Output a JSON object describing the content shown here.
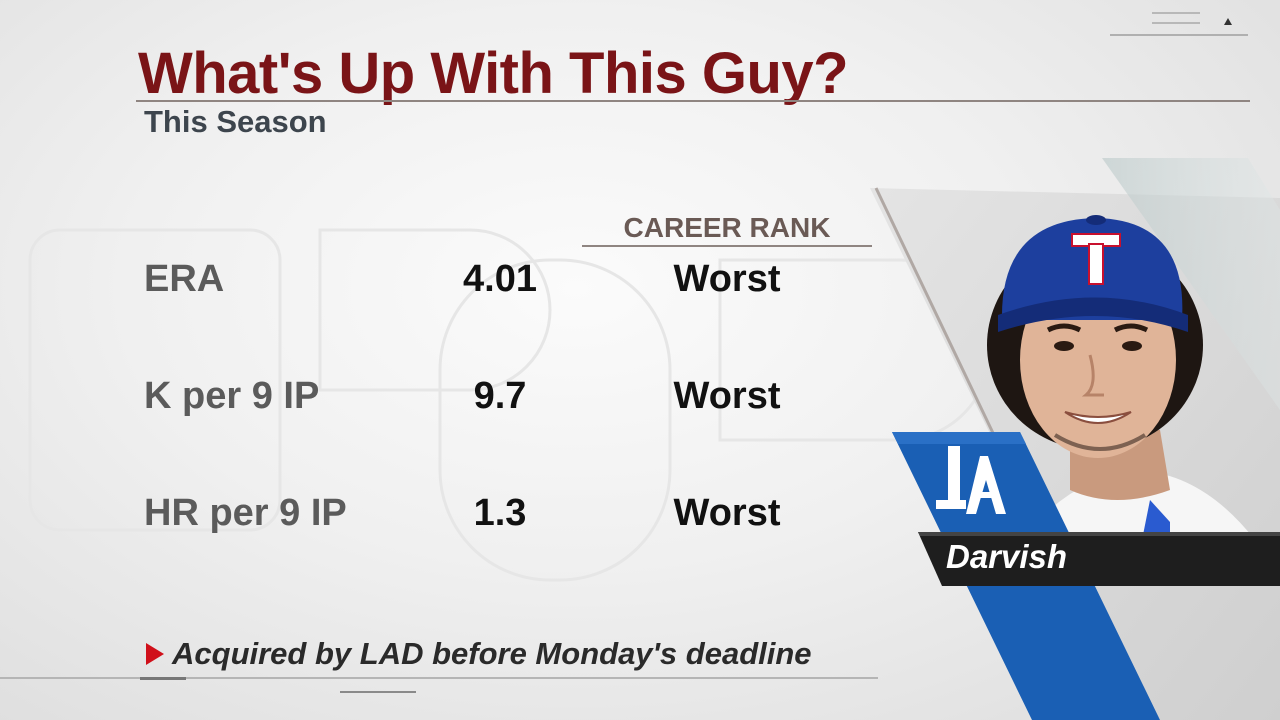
{
  "graphic": {
    "title": "What's Up With This Guy?",
    "subtitle": "This Season",
    "column_header": "CAREER RANK",
    "stats": [
      {
        "label": "ERA",
        "value": "4.01",
        "rank": "Worst"
      },
      {
        "label": "K per 9 IP",
        "value": "9.7",
        "rank": "Worst"
      },
      {
        "label": "HR per 9 IP",
        "value": "1.3",
        "rank": "Worst"
      }
    ],
    "footer_note": "Acquired by LAD before Monday's deadline"
  },
  "player": {
    "name": "Darvish",
    "team_logo": "LA",
    "cap_logo": "T",
    "photo": "player-headshot"
  },
  "colors": {
    "title": "#7a1417",
    "accent_red": "#d0101a",
    "dodgers_blue": "#1a5fb4",
    "rangers_blue": "#1d3f9e"
  },
  "icons": {
    "footer_bullet": "triangle-right-icon",
    "corner_marker": "triangle-up-icon"
  }
}
